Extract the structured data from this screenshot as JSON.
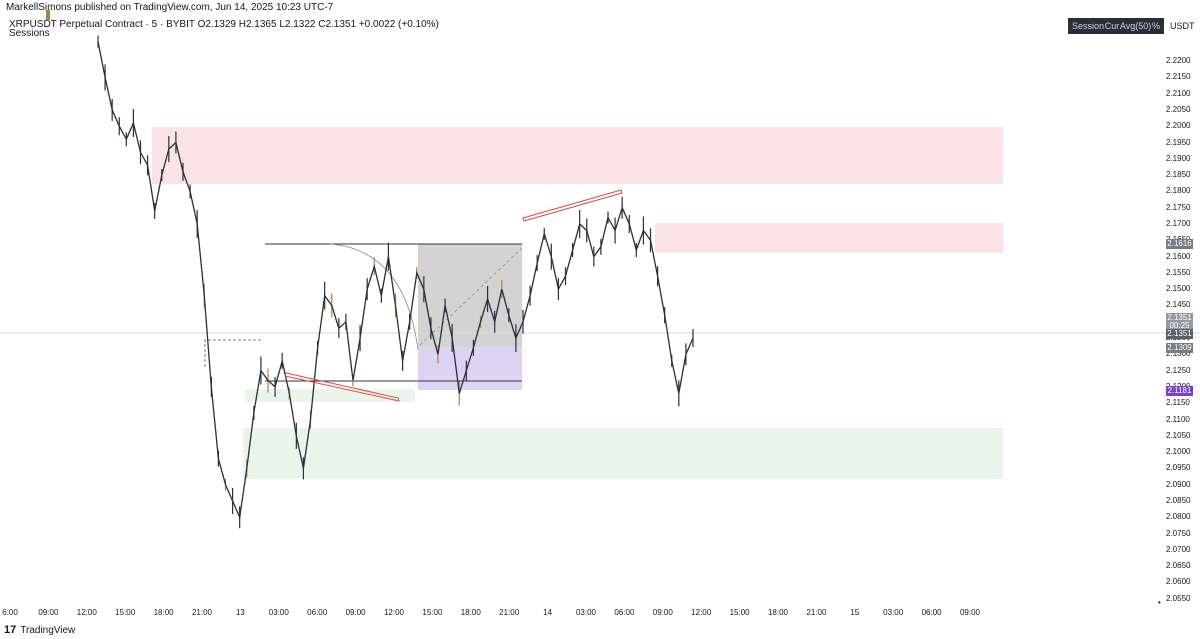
{
  "header": {
    "publisher_line": "MarkellSimons published on TradingView.com, Jun 14, 2025 10:23 UTC-7",
    "symbol_line": "XRPUSDT Perpetual Contract · 5 · BYBIT  O2.1329  H2.1365  L2.1322  C2.1351  +0.0022 (+0.10%)",
    "indicator_label": "Sessions"
  },
  "toolbar": {
    "session_label": "Session",
    "cur_label": "Cur",
    "avg_label": "Avg(50)",
    "pct_label": "%"
  },
  "currency_label": "USDT",
  "footer": {
    "brand": "TradingView",
    "logo_glyph": "17"
  },
  "price_tags": {
    "upper_zone": "2.1616",
    "last_price": "2.1351",
    "countdown": "00:25",
    "last_price_2": "2.1351",
    "mid_level": "2.1309",
    "low_level": "2.1181"
  },
  "colors": {
    "supply_zone": "#f8d0d4",
    "demand_zone": "#dcefdc",
    "gray_box": "#c8c8c8",
    "purple_box": "#d6cdf0",
    "red_line": "#e04a4a",
    "candle": "#2a2e39",
    "orange_candle": "#c27a3a"
  },
  "chart_data": {
    "type": "line",
    "title": "XRPUSDT Perpetual Contract",
    "ylim": [
      2.054,
      2.228
    ],
    "y_ticks": [
      "2.2200",
      "2.2150",
      "2.2100",
      "2.2050",
      "2.2000",
      "2.1950",
      "2.1900",
      "2.1850",
      "2.1800",
      "2.1750",
      "2.1700",
      "2.1650",
      "2.1600",
      "2.1550",
      "2.1500",
      "2.1450",
      "2.1400",
      "2.1350",
      "2.1300",
      "2.1250",
      "2.1200",
      "2.1150",
      "2.1100",
      "2.1050",
      "2.1000",
      "2.0950",
      "2.0900",
      "2.0850",
      "2.0800",
      "2.0750",
      "2.0700",
      "2.0650",
      "2.0600",
      "2.0550"
    ],
    "x_ticks": [
      "6:00",
      "09:00",
      "12:00",
      "15:00",
      "18:00",
      "21:00",
      "13",
      "03:00",
      "06:00",
      "09:00",
      "12:00",
      "15:00",
      "18:00",
      "21:00",
      "14",
      "03:00",
      "06:00",
      "09:00",
      "12:00",
      "15:00",
      "18:00",
      "21:00",
      "15",
      "03:00",
      "06:00",
      "09:00"
    ],
    "series": [
      {
        "values": [
          2.226,
          2.215,
          2.205,
          2.2,
          2.196,
          2.201,
          2.192,
          2.188,
          2.174,
          2.185,
          2.193,
          2.195,
          2.186,
          2.18,
          2.17,
          2.148,
          2.12,
          2.098,
          2.09,
          2.085,
          2.08,
          2.095,
          2.112,
          2.125,
          2.122,
          2.12,
          2.128,
          2.118,
          2.105,
          2.095,
          2.11,
          2.132,
          2.148,
          2.145,
          2.138,
          2.14,
          2.122,
          2.135,
          2.15,
          2.157,
          2.148,
          2.16,
          2.145,
          2.128,
          2.14,
          2.155,
          2.15,
          2.138,
          2.13,
          2.145,
          2.135,
          2.118,
          2.125,
          2.132,
          2.14,
          2.147,
          2.14,
          2.15,
          2.142,
          2.135,
          2.14,
          2.148,
          2.158,
          2.167,
          2.16,
          2.15,
          2.154,
          2.162,
          2.17,
          2.168,
          2.16,
          2.163,
          2.172,
          2.168,
          2.175,
          2.17,
          2.162,
          2.168,
          2.165,
          2.154,
          2.142,
          2.128,
          2.118,
          2.13,
          2.135
        ]
      }
    ]
  }
}
